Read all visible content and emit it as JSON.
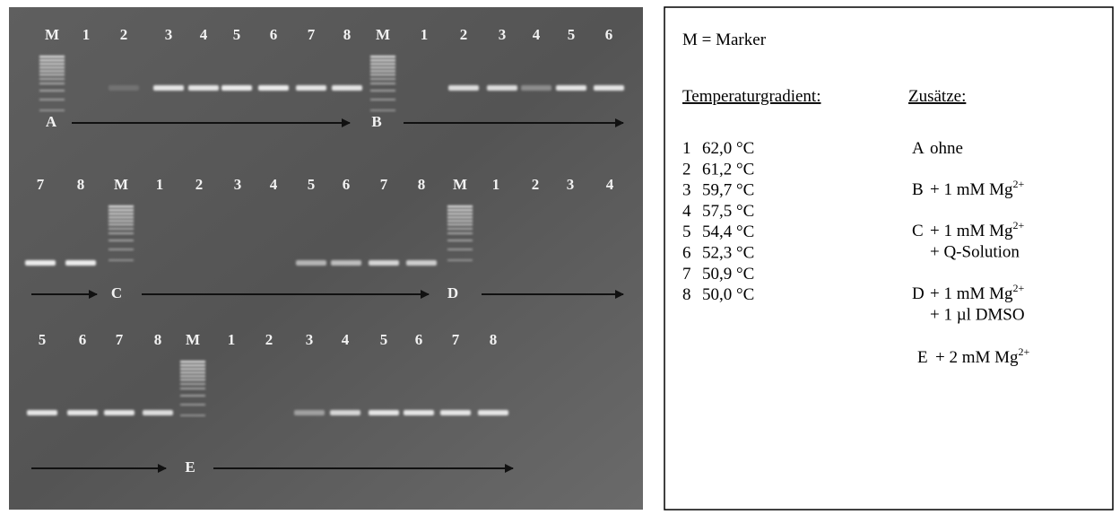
{
  "gel": {
    "rows": [
      {
        "lanes": [
          "M",
          "1",
          "2",
          "3",
          "4",
          "5",
          "6",
          "7",
          "8",
          "M",
          "1",
          "2",
          "3",
          "4",
          "5",
          "6"
        ],
        "arrows": [
          "A",
          "B"
        ]
      },
      {
        "lanes": [
          "7",
          "8",
          "M",
          "1",
          "2",
          "3",
          "4",
          "5",
          "6",
          "7",
          "8",
          "M",
          "1",
          "2",
          "3",
          "4"
        ],
        "arrows": [
          "C",
          "D"
        ]
      },
      {
        "lanes": [
          "5",
          "6",
          "7",
          "8",
          "M",
          "1",
          "2",
          "3",
          "4",
          "5",
          "6",
          "7",
          "8"
        ],
        "arrows": [
          "E"
        ]
      }
    ]
  },
  "legend": {
    "marker": "M = Marker",
    "temperature_heading": "Temperaturgradient:",
    "additives_heading": "Zusätze:",
    "temperatures": [
      {
        "number": "1",
        "temp": "62,0 °C"
      },
      {
        "number": "2",
        "temp": "61,2 °C"
      },
      {
        "number": "3",
        "temp": "59,7 °C"
      },
      {
        "number": "4",
        "temp": "57,5 °C"
      },
      {
        "number": "5",
        "temp": "54,4 °C"
      },
      {
        "number": "6",
        "temp": "52,3 °C"
      },
      {
        "number": "7",
        "temp": "50,9 °C"
      },
      {
        "number": "8",
        "temp": "50,0 °C"
      }
    ],
    "additives": [
      {
        "letter": "A",
        "text": "ohne"
      },
      {
        "letter": "B",
        "text": "+ 1 mM Mg",
        "sup": "2+"
      },
      {
        "letter": "C",
        "text": "+ 1 mM Mg",
        "sup": "2+",
        "extra": "+ Q-Solution"
      },
      {
        "letter": "D",
        "text": "+ 1 mM Mg",
        "sup": "2+",
        "extra": "+ 1 µl DMSO"
      },
      {
        "letter": "E",
        "text": "+ 2 mM Mg",
        "sup": "2+"
      }
    ]
  }
}
